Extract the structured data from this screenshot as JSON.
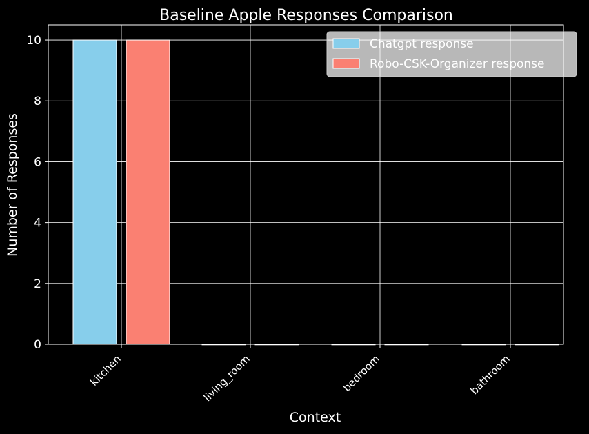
{
  "chart_data": {
    "type": "bar",
    "title": "Baseline Apple Responses Comparison",
    "xlabel": "Context",
    "ylabel": "Number of Responses",
    "categories": [
      "kitchen",
      "living_room",
      "bedroom",
      "bathroom"
    ],
    "series": [
      {
        "name": "Chatgpt response",
        "values": [
          10,
          0,
          0,
          0
        ],
        "color": "#87CEEB"
      },
      {
        "name": "Robo-CSK-Organizer response",
        "values": [
          10,
          0,
          0,
          0
        ],
        "color": "#FA8072"
      }
    ],
    "ylim": [
      0,
      10.5
    ],
    "yticks": [
      "0",
      "2",
      "4",
      "6",
      "8",
      "10"
    ],
    "grid": true,
    "legend_position": "top-right",
    "background": "#000000",
    "foreground": "#ffffff"
  }
}
